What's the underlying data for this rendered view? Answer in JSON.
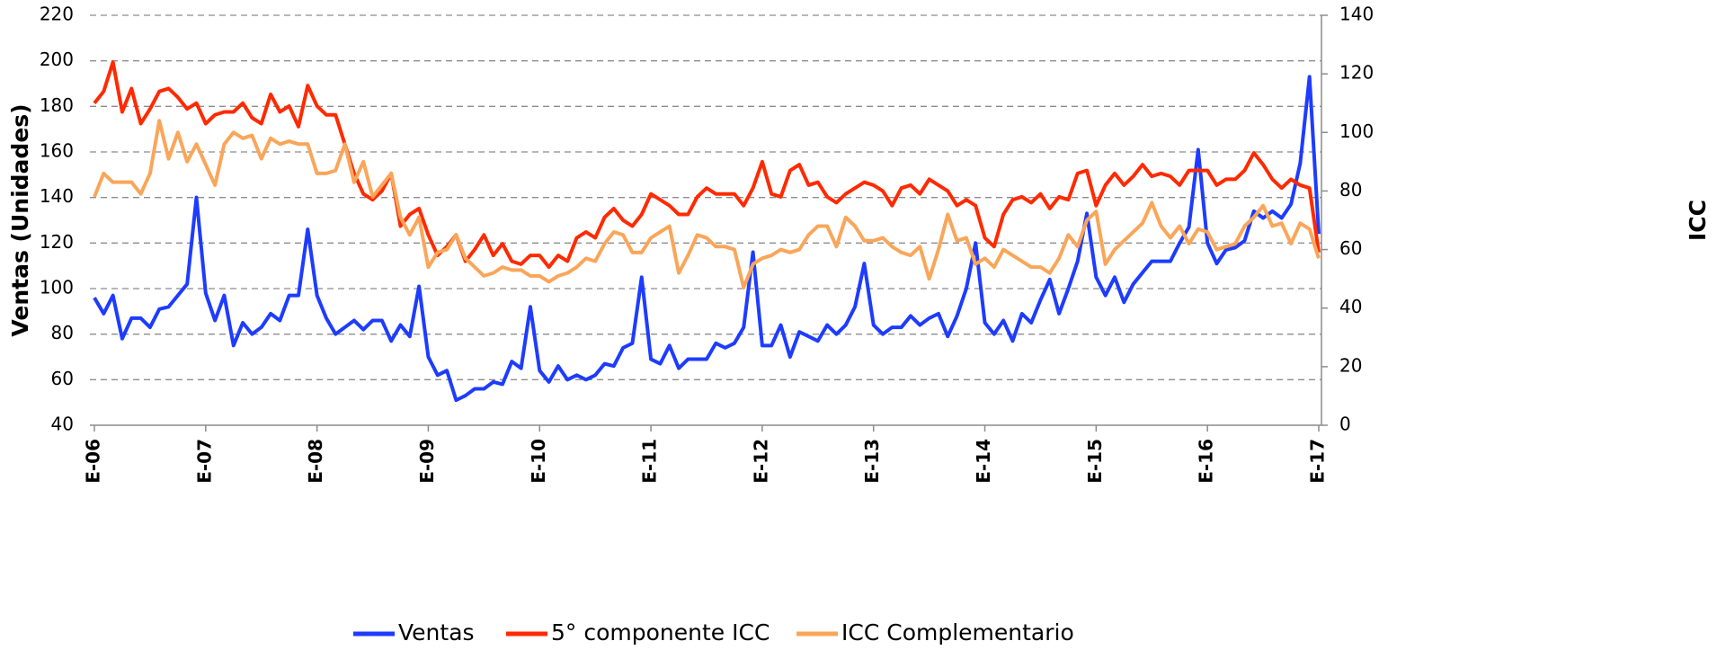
{
  "chart_data": {
    "type": "line",
    "ylabel": "Ventas (Unidades)",
    "y2label": "ICC",
    "ylim": [
      40,
      220
    ],
    "yticks": [
      40,
      60,
      80,
      100,
      120,
      140,
      160,
      180,
      200,
      220
    ],
    "y2lim": [
      0,
      140
    ],
    "y2ticks": [
      0,
      20,
      40,
      60,
      80,
      100,
      120,
      140
    ],
    "grid": true,
    "legend": "bottom",
    "categories": [
      "E-06",
      null,
      null,
      null,
      null,
      null,
      null,
      null,
      null,
      null,
      null,
      null,
      "E-07",
      null,
      null,
      null,
      null,
      null,
      null,
      null,
      null,
      null,
      null,
      null,
      "E-08",
      null,
      null,
      null,
      null,
      null,
      null,
      null,
      null,
      null,
      null,
      null,
      "E-09",
      null,
      null,
      null,
      null,
      null,
      null,
      null,
      null,
      null,
      null,
      null,
      "E-10",
      null,
      null,
      null,
      null,
      null,
      null,
      null,
      null,
      null,
      null,
      null,
      "E-11",
      null,
      null,
      null,
      null,
      null,
      null,
      null,
      null,
      null,
      null,
      null,
      "E-12",
      null,
      null,
      null,
      null,
      null,
      null,
      null,
      null,
      null,
      null,
      null,
      "E-13",
      null,
      null,
      null,
      null,
      null,
      null,
      null,
      null,
      null,
      null,
      null,
      "E-14",
      null,
      null,
      null,
      null,
      null,
      null,
      null,
      null,
      null,
      null,
      null,
      "E-15",
      null,
      null,
      null,
      null,
      null,
      null,
      null,
      null,
      null,
      null,
      null,
      "E-16",
      null,
      null,
      null,
      null,
      null,
      null,
      null,
      null,
      null,
      null,
      null,
      "E-17"
    ],
    "series": [
      {
        "name": "Ventas",
        "color": "#1e3cff",
        "axis": "y",
        "values": [
          96,
          89,
          97,
          78,
          87,
          87,
          83,
          91,
          92,
          97,
          102,
          140,
          98,
          86,
          97,
          75,
          85,
          80,
          83,
          89,
          86,
          97,
          97,
          126,
          97,
          87,
          80,
          83,
          86,
          82,
          86,
          86,
          77,
          84,
          79,
          101,
          70,
          62,
          64,
          51,
          53,
          56,
          56,
          59,
          58,
          68,
          65,
          92,
          64,
          59,
          66,
          60,
          62,
          60,
          62,
          67,
          66,
          74,
          76,
          105,
          69,
          67,
          75,
          65,
          69,
          69,
          69,
          76,
          74,
          76,
          83,
          116,
          75,
          75,
          84,
          70,
          81,
          79,
          77,
          84,
          80,
          84,
          92,
          111,
          84,
          80,
          83,
          83,
          88,
          84,
          87,
          89,
          79,
          88,
          100,
          120,
          85,
          80,
          86,
          77,
          89,
          85,
          95,
          104,
          89,
          100,
          112,
          133,
          105,
          97,
          105,
          94,
          102,
          107,
          112,
          112,
          112,
          120,
          127,
          161,
          120,
          111,
          117,
          118,
          121,
          134,
          131,
          134,
          131,
          137,
          155,
          193,
          124
        ]
      },
      {
        "name": "5° componente ICC",
        "color": "#ff2a00",
        "axis": "y2",
        "values": [
          110,
          114,
          124,
          107,
          115,
          103,
          108,
          114,
          115,
          112,
          108,
          110,
          103,
          106,
          107,
          107,
          110,
          105,
          103,
          113,
          107,
          109,
          102,
          116,
          109,
          106,
          106,
          96,
          86,
          79,
          77,
          80,
          86,
          68,
          72,
          74,
          65,
          58,
          61,
          65,
          56,
          60,
          65,
          58,
          62,
          56,
          55,
          58,
          58,
          54,
          58,
          56,
          64,
          66,
          64,
          71,
          74,
          70,
          68,
          72,
          79,
          77,
          75,
          72,
          72,
          78,
          81,
          79,
          79,
          79,
          75,
          81,
          90,
          79,
          78,
          87,
          89,
          82,
          83,
          78,
          76,
          79,
          81,
          83,
          82,
          80,
          75,
          81,
          82,
          79,
          84,
          82,
          80,
          75,
          77,
          75,
          64,
          61,
          72,
          77,
          78,
          76,
          79,
          74,
          78,
          77,
          86,
          87,
          75,
          82,
          86,
          82,
          85,
          89,
          85,
          86,
          85,
          82,
          87,
          87,
          87,
          82,
          84,
          84,
          87,
          93,
          89,
          84,
          81,
          84,
          82,
          81,
          59
        ]
      },
      {
        "name": "ICC Complementario",
        "color": "#f9a65a",
        "axis": "y2",
        "values": [
          78,
          86,
          83,
          83,
          83,
          79,
          86,
          104,
          91,
          100,
          90,
          96,
          89,
          82,
          96,
          100,
          98,
          99,
          91,
          98,
          96,
          97,
          96,
          96,
          86,
          86,
          87,
          96,
          83,
          90,
          78,
          82,
          86,
          71,
          65,
          71,
          54,
          59,
          60,
          65,
          57,
          54,
          51,
          52,
          54,
          53,
          53,
          51,
          51,
          49,
          51,
          52,
          54,
          57,
          56,
          62,
          66,
          65,
          59,
          59,
          64,
          66,
          68,
          52,
          58,
          65,
          64,
          61,
          61,
          60,
          47,
          55,
          57,
          58,
          60,
          59,
          60,
          65,
          68,
          68,
          61,
          71,
          68,
          63,
          63,
          64,
          61,
          59,
          58,
          61,
          50,
          60,
          72,
          63,
          64,
          55,
          57,
          54,
          60,
          58,
          56,
          54,
          54,
          52,
          57,
          65,
          61,
          70,
          73,
          55,
          60,
          63,
          66,
          69,
          76,
          68,
          64,
          68,
          62,
          67,
          66,
          60,
          61,
          62,
          68,
          71,
          75,
          68,
          69,
          62,
          69,
          67,
          57
        ]
      }
    ]
  }
}
